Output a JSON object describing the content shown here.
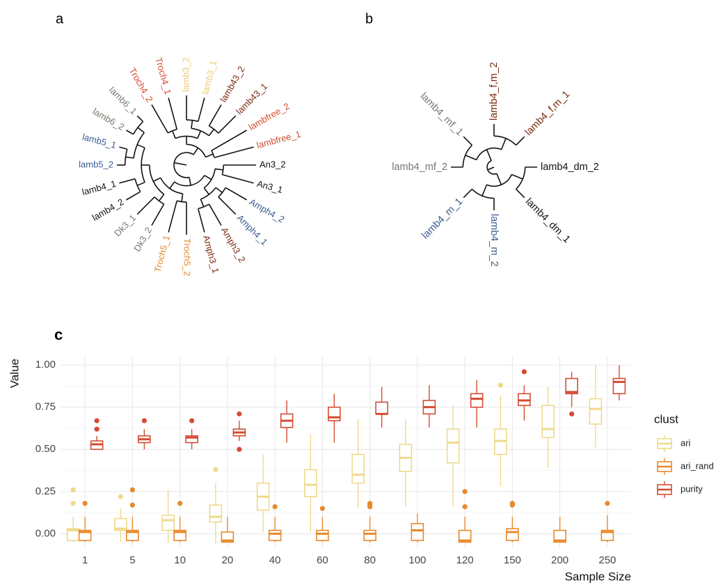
{
  "panel_labels": [
    "a",
    "b",
    "c"
  ],
  "tree_a": {
    "leaves": [
      {
        "label": "An3_2",
        "color": "#111111"
      },
      {
        "label": "An3_1",
        "color": "#111111"
      },
      {
        "label": "Amph4_2",
        "color": "#3b5b8f"
      },
      {
        "label": "Amph4_1",
        "color": "#3b5b8f"
      },
      {
        "label": "Amph3_2",
        "color": "#7a2b12"
      },
      {
        "label": "Amph3_1",
        "color": "#7a2b12"
      },
      {
        "label": "Troch5_2",
        "color": "#e58a2c"
      },
      {
        "label": "Troch5_1",
        "color": "#e58a2c"
      },
      {
        "label": "Dk3_2",
        "color": "#6f7a6c"
      },
      {
        "label": "Dk3_1",
        "color": "#6f7a6c"
      },
      {
        "label": "lamb4_2",
        "color": "#111111"
      },
      {
        "label": "lamb4_1",
        "color": "#111111"
      },
      {
        "label": "lamb5_2",
        "color": "#3b5b8f"
      },
      {
        "label": "lamb5_1",
        "color": "#3b5b8f"
      },
      {
        "label": "lamb6_2",
        "color": "#6f7a6c"
      },
      {
        "label": "lamb6_1",
        "color": "#6f7a6c"
      },
      {
        "label": "Troch4_2",
        "color": "#d44b32"
      },
      {
        "label": "Troch4_1",
        "color": "#d44b32"
      },
      {
        "label": "lamb3_2",
        "color": "#eccb78"
      },
      {
        "label": "lamb3_1",
        "color": "#eccb78"
      },
      {
        "label": "lamb43_2",
        "color": "#7a2b12"
      },
      {
        "label": "lamb43_1",
        "color": "#7a2b12"
      },
      {
        "label": "lambfree_2",
        "color": "#d44b32"
      },
      {
        "label": "lambfree_1",
        "color": "#d44b32"
      }
    ]
  },
  "tree_b": {
    "leaves": [
      {
        "label": "lamb4_dm_2",
        "color": "#111111"
      },
      {
        "label": "lamb4_dm_1",
        "color": "#111111"
      },
      {
        "label": "lamb4_m_2",
        "color": "#3b5b8f"
      },
      {
        "label": "lamb4_m_1",
        "color": "#3b5b8f"
      },
      {
        "label": "lamb4_mf_2",
        "color": "#6f7a6c"
      },
      {
        "label": "lamb4_mf_1",
        "color": "#6f7a6c"
      },
      {
        "label": "lamb4_f,m_2",
        "color": "#7a2b12"
      },
      {
        "label": "lamb4_f,m_1",
        "color": "#7a2b12"
      }
    ]
  },
  "chart_data": {
    "type": "boxplot",
    "categories": [
      "1",
      "5",
      "10",
      "20",
      "40",
      "60",
      "80",
      "100",
      "120",
      "150",
      "200",
      "250"
    ],
    "x_label": "Sample Size",
    "y_label": "Value",
    "ylim": [
      -0.085,
      1.05
    ],
    "yticks": [
      {
        "value": 0,
        "label": "0.00"
      },
      {
        "value": 0.25,
        "label": "0.25"
      },
      {
        "value": 0.5,
        "label": "0.50"
      },
      {
        "value": 0.75,
        "label": "0.75"
      },
      {
        "value": 1,
        "label": "1.00"
      }
    ],
    "grid": true,
    "legend_title": "clust",
    "legend_position": "right",
    "series": [
      {
        "name": "ari",
        "color": "#efd98c",
        "boxes": [
          {
            "low": -0.05,
            "q1": -0.04,
            "median": 0.02,
            "q3": 0.03,
            "high": 0.1,
            "outliers": [
              0.18,
              0.26
            ]
          },
          {
            "low": -0.05,
            "q1": 0.02,
            "median": 0.03,
            "q3": 0.09,
            "high": 0.15,
            "outliers": [
              0.22
            ]
          },
          {
            "low": -0.05,
            "q1": 0.02,
            "median": 0.08,
            "q3": 0.11,
            "high": 0.26,
            "outliers": []
          },
          {
            "low": -0.06,
            "q1": 0.07,
            "median": 0.1,
            "q3": 0.17,
            "high": 0.3,
            "outliers": [
              0.38
            ]
          },
          {
            "low": 0.01,
            "q1": 0.14,
            "median": 0.22,
            "q3": 0.3,
            "high": 0.47,
            "outliers": []
          },
          {
            "low": 0.01,
            "q1": 0.22,
            "median": 0.29,
            "q3": 0.38,
            "high": 0.59,
            "outliers": []
          },
          {
            "low": 0.15,
            "q1": 0.3,
            "median": 0.35,
            "q3": 0.47,
            "high": 0.68,
            "outliers": []
          },
          {
            "low": 0.16,
            "q1": 0.37,
            "median": 0.45,
            "q3": 0.53,
            "high": 0.68,
            "outliers": []
          },
          {
            "low": 0.16,
            "q1": 0.42,
            "median": 0.54,
            "q3": 0.62,
            "high": 0.76,
            "outliers": []
          },
          {
            "low": 0.28,
            "q1": 0.47,
            "median": 0.55,
            "q3": 0.62,
            "high": 0.82,
            "outliers": [
              0.88
            ]
          },
          {
            "low": 0.39,
            "q1": 0.57,
            "median": 0.62,
            "q3": 0.76,
            "high": 0.87,
            "outliers": []
          },
          {
            "low": 0.51,
            "q1": 0.65,
            "median": 0.74,
            "q3": 0.8,
            "high": 1.0,
            "outliers": []
          }
        ]
      },
      {
        "name": "ari_rand",
        "color": "#e8892b",
        "boxes": [
          {
            "low": -0.05,
            "q1": -0.04,
            "median": 0.01,
            "q3": 0.02,
            "high": 0.1,
            "outliers": [
              0.18
            ]
          },
          {
            "low": -0.05,
            "q1": -0.04,
            "median": 0.01,
            "q3": 0.02,
            "high": 0.1,
            "outliers": [
              0.17,
              0.26
            ]
          },
          {
            "low": -0.05,
            "q1": -0.04,
            "median": 0.01,
            "q3": 0.02,
            "high": 0.1,
            "outliers": [
              0.18
            ]
          },
          {
            "low": -0.05,
            "q1": -0.05,
            "median": -0.04,
            "q3": 0.01,
            "high": 0.1,
            "outliers": []
          },
          {
            "low": -0.05,
            "q1": -0.04,
            "median": 0.0,
            "q3": 0.02,
            "high": 0.1,
            "outliers": [
              0.16
            ]
          },
          {
            "low": -0.05,
            "q1": -0.04,
            "median": 0.0,
            "q3": 0.02,
            "high": 0.1,
            "outliers": [
              0.15
            ]
          },
          {
            "low": -0.05,
            "q1": -0.04,
            "median": 0.0,
            "q3": 0.02,
            "high": 0.1,
            "outliers": [
              0.16,
              0.17,
              0.18
            ]
          },
          {
            "low": -0.05,
            "q1": -0.04,
            "median": 0.02,
            "q3": 0.06,
            "high": 0.12,
            "outliers": []
          },
          {
            "low": -0.05,
            "q1": -0.05,
            "median": -0.04,
            "q3": 0.02,
            "high": 0.1,
            "outliers": [
              0.16,
              0.25
            ]
          },
          {
            "low": -0.05,
            "q1": -0.04,
            "median": 0.01,
            "q3": 0.03,
            "high": 0.1,
            "outliers": [
              0.17,
              0.18
            ]
          },
          {
            "low": -0.05,
            "q1": -0.05,
            "median": -0.04,
            "q3": 0.02,
            "high": 0.1,
            "outliers": []
          },
          {
            "low": -0.05,
            "q1": -0.04,
            "median": 0.01,
            "q3": 0.02,
            "high": 0.11,
            "outliers": [
              0.18
            ]
          }
        ]
      },
      {
        "name": "purity",
        "color": "#d44b32",
        "boxes": [
          {
            "low": 0.5,
            "q1": 0.5,
            "median": 0.53,
            "q3": 0.55,
            "high": 0.58,
            "outliers": [
              0.62,
              0.67
            ]
          },
          {
            "low": 0.5,
            "q1": 0.54,
            "median": 0.56,
            "q3": 0.58,
            "high": 0.62,
            "outliers": [
              0.67
            ]
          },
          {
            "low": 0.5,
            "q1": 0.54,
            "median": 0.57,
            "q3": 0.58,
            "high": 0.62,
            "outliers": [
              0.67
            ]
          },
          {
            "low": 0.55,
            "q1": 0.58,
            "median": 0.6,
            "q3": 0.62,
            "high": 0.67,
            "outliers": [
              0.5,
              0.71
            ]
          },
          {
            "low": 0.54,
            "q1": 0.63,
            "median": 0.67,
            "q3": 0.71,
            "high": 0.79,
            "outliers": []
          },
          {
            "low": 0.54,
            "q1": 0.67,
            "median": 0.69,
            "q3": 0.75,
            "high": 0.83,
            "outliers": []
          },
          {
            "low": 0.63,
            "q1": 0.71,
            "median": 0.71,
            "q3": 0.78,
            "high": 0.87,
            "outliers": []
          },
          {
            "low": 0.63,
            "q1": 0.71,
            "median": 0.75,
            "q3": 0.79,
            "high": 0.88,
            "outliers": []
          },
          {
            "low": 0.63,
            "q1": 0.75,
            "median": 0.8,
            "q3": 0.83,
            "high": 0.91,
            "outliers": []
          },
          {
            "low": 0.67,
            "q1": 0.76,
            "median": 0.79,
            "q3": 0.83,
            "high": 0.88,
            "outliers": [
              0.96
            ]
          },
          {
            "low": 0.75,
            "q1": 0.83,
            "median": 0.84,
            "q3": 0.92,
            "high": 0.96,
            "outliers": [
              0.71
            ]
          },
          {
            "low": 0.79,
            "q1": 0.83,
            "median": 0.9,
            "q3": 0.92,
            "high": 1.0,
            "outliers": []
          }
        ]
      }
    ]
  }
}
